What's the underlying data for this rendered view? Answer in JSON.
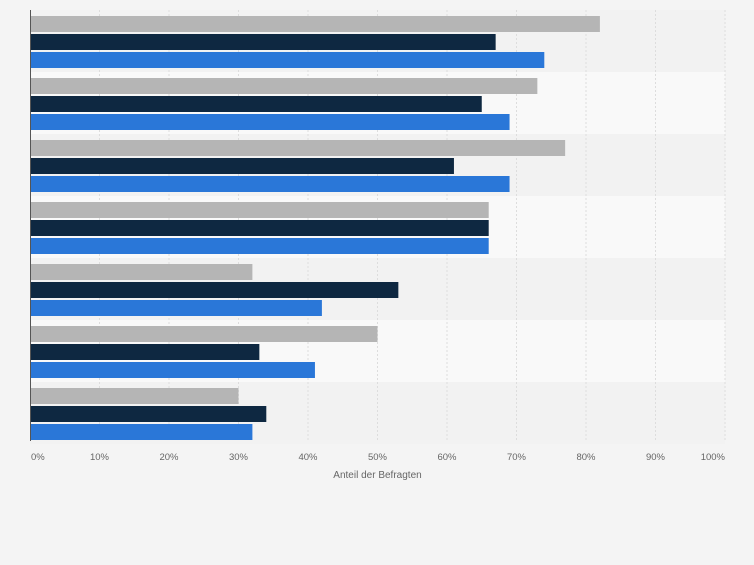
{
  "chart_data": {
    "type": "bar",
    "orientation": "horizontal",
    "xlabel": "Anteil der Befragten",
    "xlim": [
      0,
      100
    ],
    "x_ticks": [
      "0%",
      "10%",
      "20%",
      "30%",
      "40%",
      "50%",
      "60%",
      "70%",
      "80%",
      "90%",
      "100%"
    ],
    "grid": true,
    "series": [
      {
        "color": "#b5b5b5",
        "values": [
          82,
          73,
          77,
          66,
          32,
          50,
          30
        ]
      },
      {
        "color": "#0e2841",
        "values": [
          67,
          65,
          61,
          66,
          53,
          33,
          34
        ]
      },
      {
        "color": "#2a77d8",
        "values": [
          74,
          69,
          69,
          66,
          42,
          41,
          32
        ]
      }
    ]
  },
  "colors": {
    "background": "#f4f4f4",
    "band_light": "#f9f9f9",
    "band_dark": "#f2f2f2",
    "grid": "#dddddd",
    "axis": "#555555",
    "tick_text": "#666666"
  }
}
